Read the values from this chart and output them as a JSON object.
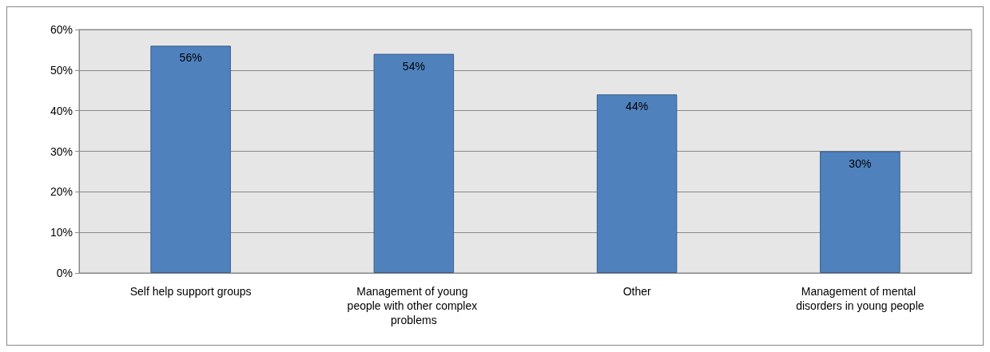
{
  "chart_data": {
    "type": "bar",
    "categories": [
      "Self help support groups",
      "Management of young people with other complex problems",
      "Other",
      "Management of mental disorders in young people"
    ],
    "values": [
      56,
      54,
      44,
      30
    ],
    "value_labels": [
      "56%",
      "54%",
      "44%",
      "30%"
    ],
    "color": "#4f81bd",
    "ylim": [
      0,
      60
    ],
    "yticks": [
      {
        "value": 0,
        "label": "0%"
      },
      {
        "value": 10,
        "label": "10%"
      },
      {
        "value": 20,
        "label": "20%"
      },
      {
        "value": 30,
        "label": "30%"
      },
      {
        "value": 40,
        "label": "40%"
      },
      {
        "value": 50,
        "label": "50%"
      },
      {
        "value": 60,
        "label": "60%"
      }
    ],
    "grid": "y"
  }
}
